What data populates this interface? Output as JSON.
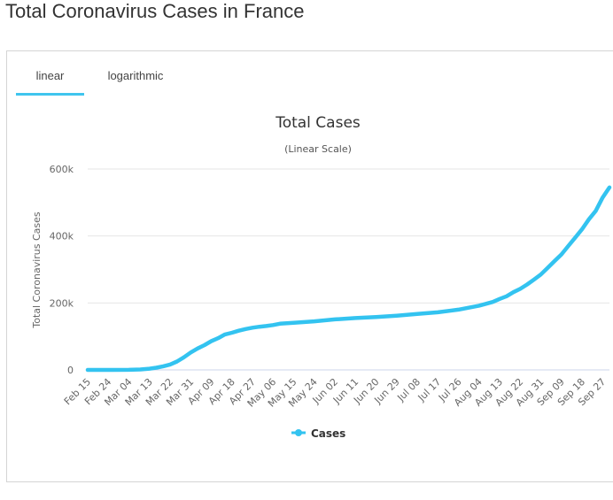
{
  "page": {
    "title": "Total Coronavirus Cases in France"
  },
  "tabs": [
    {
      "label": "linear",
      "active": true
    },
    {
      "label": "logarithmic",
      "active": false
    }
  ],
  "colors": {
    "series": "#33c3f0",
    "tab_underline": "#3fc5ee",
    "grid": "#e6e6e6",
    "text": "#333333"
  },
  "chart_data": {
    "type": "line",
    "title": "Total Cases",
    "subtitle": "(Linear Scale)",
    "ylabel": "Total Coronavirus Cases",
    "xlabel": "",
    "ylim": [
      0,
      600000
    ],
    "yticks": [
      0,
      200000,
      400000,
      600000
    ],
    "ytick_labels": [
      "0",
      "200k",
      "400k",
      "600k"
    ],
    "x_start": "Feb 15",
    "x_end": "Sep 30",
    "xticks": [
      "Feb 15",
      "Feb 24",
      "Mar 04",
      "Mar 13",
      "Mar 22",
      "Mar 31",
      "Apr 09",
      "Apr 18",
      "Apr 27",
      "May 06",
      "May 15",
      "May 24",
      "Jun 02",
      "Jun 11",
      "Jun 20",
      "Jun 29",
      "Jul 08",
      "Jul 17",
      "Jul 26",
      "Aug 04",
      "Aug 13",
      "Aug 22",
      "Aug 31",
      "Sep 09",
      "Sep 18",
      "Sep 27"
    ],
    "grid": true,
    "legend": "bottom-center",
    "series": [
      {
        "name": "Cases",
        "points": [
          [
            "Feb 15",
            12
          ],
          [
            "Feb 24",
            12
          ],
          [
            "Mar 04",
            285
          ],
          [
            "Mar 09",
            1400
          ],
          [
            "Mar 13",
            3660
          ],
          [
            "Mar 16",
            6600
          ],
          [
            "Mar 19",
            10900
          ],
          [
            "Mar 22",
            16000
          ],
          [
            "Mar 25",
            25000
          ],
          [
            "Mar 28",
            37600
          ],
          [
            "Mar 31",
            52000
          ],
          [
            "Apr 03",
            64000
          ],
          [
            "Apr 06",
            74000
          ],
          [
            "Apr 09",
            86000
          ],
          [
            "Apr 12",
            95000
          ],
          [
            "Apr 15",
            106000
          ],
          [
            "Apr 18",
            111000
          ],
          [
            "Apr 21",
            117000
          ],
          [
            "Apr 24",
            122000
          ],
          [
            "Apr 27",
            126000
          ],
          [
            "Apr 30",
            129000
          ],
          [
            "May 03",
            131000
          ],
          [
            "May 06",
            134000
          ],
          [
            "May 09",
            138000
          ],
          [
            "May 15",
            141000
          ],
          [
            "May 24",
            145000
          ],
          [
            "Jun 02",
            151000
          ],
          [
            "Jun 11",
            155000
          ],
          [
            "Jun 20",
            158000
          ],
          [
            "Jun 29",
            162000
          ],
          [
            "Jul 08",
            167000
          ],
          [
            "Jul 17",
            172000
          ],
          [
            "Jul 26",
            180000
          ],
          [
            "Aug 04",
            192000
          ],
          [
            "Aug 10",
            203000
          ],
          [
            "Aug 13",
            212000
          ],
          [
            "Aug 16",
            220000
          ],
          [
            "Aug 19",
            232000
          ],
          [
            "Aug 22",
            242000
          ],
          [
            "Aug 25",
            255000
          ],
          [
            "Aug 28",
            270000
          ],
          [
            "Aug 31",
            285000
          ],
          [
            "Sep 03",
            305000
          ],
          [
            "Sep 06",
            325000
          ],
          [
            "Sep 09",
            345000
          ],
          [
            "Sep 12",
            370000
          ],
          [
            "Sep 15",
            395000
          ],
          [
            "Sep 18",
            420000
          ],
          [
            "Sep 21",
            450000
          ],
          [
            "Sep 24",
            475000
          ],
          [
            "Sep 27",
            515000
          ],
          [
            "Sep 30",
            545000
          ]
        ]
      }
    ]
  }
}
